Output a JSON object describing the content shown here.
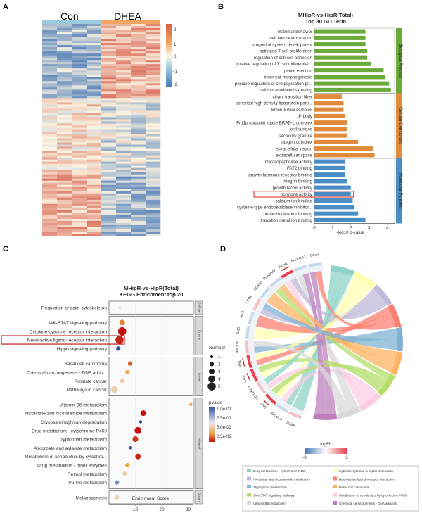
{
  "panels": {
    "a": "A",
    "b": "B",
    "c": "C",
    "d": "D"
  },
  "heatmap": {
    "groups": [
      "Con",
      "DHEA"
    ],
    "colorbar_ticks": [
      "2",
      "1",
      "0",
      "−1",
      "−2"
    ],
    "colors": {
      "high": "#d6604d",
      "mid": "#fdf6e3",
      "low": "#4575b4",
      "con_bar": "#9ecae1",
      "dhea_bar": "#f4a460"
    }
  },
  "chart_data": [
    {
      "type": "bar",
      "title": "MHipR-vs-HipR(Total)",
      "subtitle": "Top 30 GO Term",
      "xlabel": "-log10 p-value",
      "xticks": [
        "0",
        "1",
        "2",
        "3",
        "4"
      ],
      "xlim": [
        0,
        4.4
      ],
      "categories_groups": [
        {
          "name": "Biological Process",
          "color": "#6aaa3a",
          "terms": [
            "maternal behavior",
            "cell fate determination",
            "urogenital system development",
            "activated T cell proliferation",
            "regulation of cell-cell adhesion",
            "positive regulation of T cell differentiat...",
            "penile erection",
            "inner ear morphogenesis",
            "positive regulation of cell population pr...",
            "calcium-mediated signaling"
          ],
          "values": [
            2.8,
            2.8,
            2.8,
            2.9,
            2.9,
            3.1,
            3.8,
            3.9,
            4.1,
            4.2
          ]
        },
        {
          "name": "Cellular Component",
          "color": "#e08a3c",
          "terms": [
            "ciliary transition fiber",
            "spherical high-density lipoprotein parti...",
            "Smc5-Smc6 complex",
            "P-body",
            "Frd1p ubiquitin ligase ERAD-L complex",
            "cell surface",
            "secretory granule",
            "integrin complex",
            "extracellular region",
            "extracellular space"
          ],
          "values": [
            1.5,
            1.6,
            1.6,
            1.7,
            1.8,
            1.8,
            1.8,
            2.4,
            3.2,
            3.3
          ]
        },
        {
          "name": "Molecular Function",
          "color": "#4a8cc4",
          "terms": [
            "metallopeptidase activity",
            "FAT2 binding",
            "growth hormone receptor binding",
            "integrin binding",
            "growth factor activity",
            "hormone activity",
            "calcium ion binding",
            "cysteine-type endopeptidase inhibitor...",
            "prolactin receptor binding",
            "transition metal ion binding"
          ],
          "values": [
            1.7,
            1.7,
            1.7,
            1.8,
            2.0,
            2.0,
            2.1,
            2.2,
            2.4,
            2.8
          ]
        }
      ],
      "highlight": "hormone activity"
    },
    {
      "type": "scatter",
      "title": "MHipR-vs-HipR(Total)",
      "subtitle": "KEGG Enrichment top 20",
      "xlabel": "Enrichment Score",
      "xticks": [
        "10",
        "20",
        "30"
      ],
      "xlim": [
        0,
        32
      ],
      "groups": [
        {
          "name": "Cellular",
          "terms": [
            "Regulation of actin cytoskeleton"
          ],
          "x": [
            4
          ],
          "count": [
            1
          ],
          "pvalue": [
            0.075
          ]
        },
        {
          "name": "Environ",
          "terms": [
            "JAK-STAT signaling pathway",
            "Cytokine-cytokine receptor interaction",
            "Neuroactive ligand-receptor interaction",
            "Hippo signaling pathway"
          ],
          "x": [
            5,
            5,
            4,
            3.5
          ],
          "count": [
            3,
            5,
            5,
            2
          ],
          "pvalue": [
            0.05,
            0.02,
            0.025,
            0.1
          ]
        },
        {
          "name": "Human",
          "terms": [
            "Basal cell carcinoma",
            "Chemical carcinogenesis - DNA addu...",
            "Prostate cancer",
            "Pathways in cancer"
          ],
          "x": [
            8,
            7,
            5,
            2
          ],
          "count": [
            2,
            2,
            2,
            4
          ],
          "pvalue": [
            0.04,
            0.06,
            0.07,
            0.07
          ]
        },
        {
          "name": "Metabol",
          "terms": [
            "Vitamin B6 metabolism",
            "Nicotinate and nicotinamide metabolism",
            "Glycosaminoglycan degradation",
            "Drug metabolism - cytochrome P450",
            "Tryptophan metabolism",
            "Ascorbate and aldarate metabolism",
            "Metabolism of xenobiotics by cytochro...",
            "Drug metabolism - other enzymes",
            "Retinol metabolism",
            "Purine metabolism"
          ],
          "x": [
            31,
            13,
            12,
            11,
            10,
            8,
            11,
            7,
            6,
            3
          ],
          "count": [
            1,
            3,
            1,
            4,
            3,
            1,
            3,
            2,
            2,
            2
          ],
          "pvalue": [
            0.06,
            0.02,
            0.1,
            0.02,
            0.03,
            0.12,
            0.025,
            0.06,
            0.07,
            0.09
          ]
        },
        {
          "name": "Organi",
          "terms": [
            "Melanogenesis"
          ],
          "x": [
            3
          ],
          "count": [
            2
          ],
          "pvalue": [
            0.07
          ]
        }
      ],
      "highlight": "Neuroactive ligand-receptor interaction",
      "legend_count": {
        "title": "Number",
        "values": [
          1,
          2,
          3,
          4,
          5
        ]
      },
      "legend_pvalue": {
        "title": "pvalue",
        "ticks": [
          "1.0e-01",
          "7.5e-02",
          "5.0e-02",
          "2.5e-02"
        ]
      }
    },
    {
      "type": "chord",
      "genes": [
        "ARG1",
        "CYP2B6",
        "GH1",
        "UGT2B15",
        "PRL",
        "ANG",
        "PRODH",
        "IL10",
        "MT3",
        "LRP2",
        "SOX18",
        "PLA2G4A",
        "ADH1",
        "ALDH1A1",
        "Other"
      ],
      "red_underlined": [
        "ADH1",
        "ANG",
        "PRL",
        "GH1"
      ],
      "colorbar_title": "logFC",
      "colorbar_ticks": [
        "-3",
        "3"
      ],
      "pathways": [
        {
          "name": "Drug metabolism - cytochrome P450",
          "color": "#8dd3c7"
        },
        {
          "name": "Cytokine-cytokine receptor interaction",
          "color": "#ffffb3"
        },
        {
          "name": "Nicotinate and nicotinamide metabolism",
          "color": "#bebada"
        },
        {
          "name": "Neuroactive ligand-receptor interaction",
          "color": "#fb8072"
        },
        {
          "name": "Tryptophan metabolism",
          "color": "#80b1d3"
        },
        {
          "name": "Basal cell carcinoma",
          "color": "#fdb462"
        },
        {
          "name": "JAK-STAT signaling pathway",
          "color": "#b3de69"
        },
        {
          "name": "Metabolism of xenobiotics by cytochrome P450",
          "color": "#fccde5"
        },
        {
          "name": "Vitamin B6 metabolism",
          "color": "#d9d9d9"
        },
        {
          "name": "Chemical carcinogenesis - DNA adducts",
          "color": "#bc80bd"
        }
      ]
    }
  ]
}
